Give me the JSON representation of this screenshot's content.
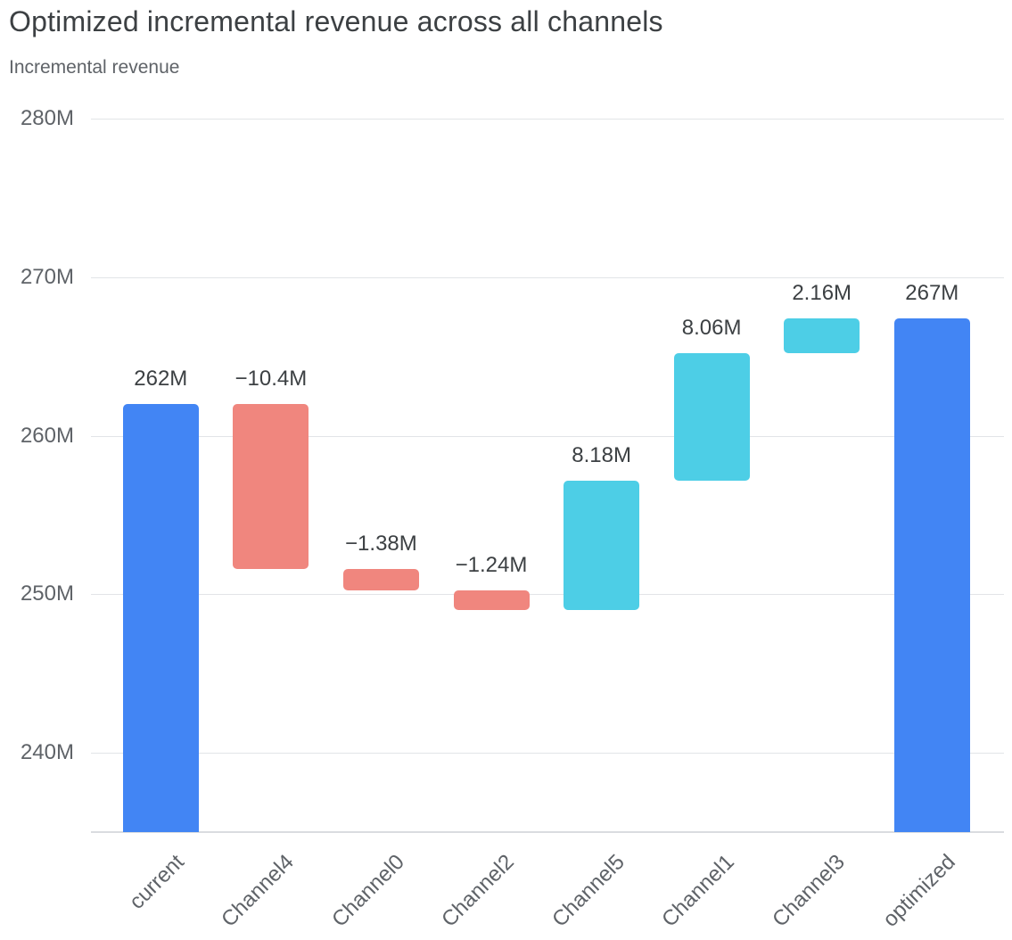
{
  "page": {
    "background": "#FFFFFF"
  },
  "header": {
    "title": "Optimized incremental revenue across all channels",
    "subtitle": "Incremental revenue"
  },
  "chart_data": {
    "type": "bar",
    "subtype": "waterfall",
    "title": "Optimized incremental revenue across all channels",
    "ylabel": "Incremental revenue",
    "xlabel": "",
    "grid": true,
    "legend": false,
    "categories": [
      "current",
      "Channel4",
      "Channel0",
      "Channel2",
      "Channel5",
      "Channel1",
      "Channel3",
      "optimized"
    ],
    "bars": [
      {
        "category": "current",
        "label": "262M",
        "value": 262,
        "start": 235,
        "end": 262,
        "role": "total"
      },
      {
        "category": "Channel4",
        "label": "−10.4M",
        "value": -10.4,
        "start": 262,
        "end": 251.6,
        "role": "decrease"
      },
      {
        "category": "Channel0",
        "label": "−1.38M",
        "value": -1.38,
        "start": 251.6,
        "end": 250.22,
        "role": "decrease"
      },
      {
        "category": "Channel2",
        "label": "−1.24M",
        "value": -1.24,
        "start": 250.22,
        "end": 248.98,
        "role": "decrease"
      },
      {
        "category": "Channel5",
        "label": "8.18M",
        "value": 8.18,
        "start": 248.98,
        "end": 257.16,
        "role": "increase"
      },
      {
        "category": "Channel1",
        "label": "8.06M",
        "value": 8.06,
        "start": 257.16,
        "end": 265.22,
        "role": "increase"
      },
      {
        "category": "Channel3",
        "label": "2.16M",
        "value": 2.16,
        "start": 265.22,
        "end": 267.38,
        "role": "increase"
      },
      {
        "category": "optimized",
        "label": "267M",
        "value": 267.38,
        "start": 235,
        "end": 267.38,
        "role": "total"
      }
    ],
    "colors": {
      "total": "#4285F4",
      "decrease": "#F0867E",
      "increase": "#4DCEE6",
      "gridline": "#E2E4E7",
      "axis_line": "#DADCE0",
      "value_label": "#3C4043",
      "axis_label": "#5F6368",
      "title": "#3C4043",
      "subtitle": "#5F6368"
    },
    "y_axis": {
      "min": 235,
      "max": 280,
      "tick_values": [
        240,
        250,
        260,
        270,
        280
      ],
      "tick_labels": [
        "240M",
        "250M",
        "260M",
        "270M",
        "280M"
      ]
    }
  }
}
